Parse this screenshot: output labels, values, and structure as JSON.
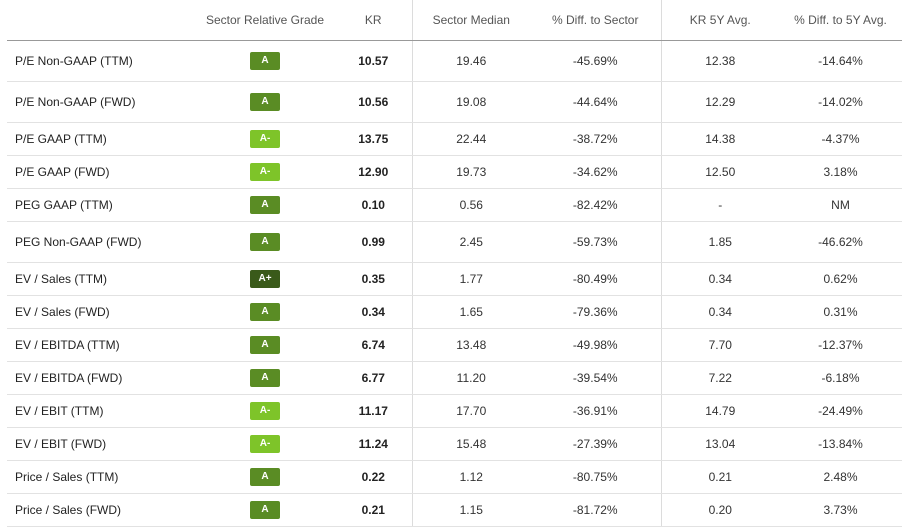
{
  "headers": {
    "metric": "",
    "grade": "Sector Relative Grade",
    "ticker": "KR",
    "sector_median": "Sector Median",
    "diff_sector": "% Diff. to Sector",
    "avg5y": "KR 5Y Avg.",
    "diff_5y": "% Diff. to 5Y Avg."
  },
  "colors": {
    "A+": "#3a5a1a",
    "A": "#5a8c24",
    "A-": "#7ec429"
  },
  "rows": [
    {
      "metric": "P/E Non-GAAP (TTM)",
      "grade": "A",
      "kr": "10.57",
      "median": "19.46",
      "diff_sector": "-45.69%",
      "avg5y": "12.38",
      "diff_5y": "-14.64%"
    },
    {
      "metric": "P/E Non-GAAP (FWD)",
      "grade": "A",
      "kr": "10.56",
      "median": "19.08",
      "diff_sector": "-44.64%",
      "avg5y": "12.29",
      "diff_5y": "-14.02%"
    },
    {
      "metric": "P/E GAAP (TTM)",
      "grade": "A-",
      "kr": "13.75",
      "median": "22.44",
      "diff_sector": "-38.72%",
      "avg5y": "14.38",
      "diff_5y": "-4.37%"
    },
    {
      "metric": "P/E GAAP (FWD)",
      "grade": "A-",
      "kr": "12.90",
      "median": "19.73",
      "diff_sector": "-34.62%",
      "avg5y": "12.50",
      "diff_5y": "3.18%"
    },
    {
      "metric": "PEG GAAP (TTM)",
      "grade": "A",
      "kr": "0.10",
      "median": "0.56",
      "diff_sector": "-82.42%",
      "avg5y": "-",
      "diff_5y": "NM"
    },
    {
      "metric": "PEG Non-GAAP (FWD)",
      "grade": "A",
      "kr": "0.99",
      "median": "2.45",
      "diff_sector": "-59.73%",
      "avg5y": "1.85",
      "diff_5y": "-46.62%"
    },
    {
      "metric": "EV / Sales (TTM)",
      "grade": "A+",
      "kr": "0.35",
      "median": "1.77",
      "diff_sector": "-80.49%",
      "avg5y": "0.34",
      "diff_5y": "0.62%"
    },
    {
      "metric": "EV / Sales (FWD)",
      "grade": "A",
      "kr": "0.34",
      "median": "1.65",
      "diff_sector": "-79.36%",
      "avg5y": "0.34",
      "diff_5y": "0.31%"
    },
    {
      "metric": "EV / EBITDA (TTM)",
      "grade": "A",
      "kr": "6.74",
      "median": "13.48",
      "diff_sector": "-49.98%",
      "avg5y": "7.70",
      "diff_5y": "-12.37%"
    },
    {
      "metric": "EV / EBITDA (FWD)",
      "grade": "A",
      "kr": "6.77",
      "median": "11.20",
      "diff_sector": "-39.54%",
      "avg5y": "7.22",
      "diff_5y": "-6.18%"
    },
    {
      "metric": "EV / EBIT (TTM)",
      "grade": "A-",
      "kr": "11.17",
      "median": "17.70",
      "diff_sector": "-36.91%",
      "avg5y": "14.79",
      "diff_5y": "-24.49%"
    },
    {
      "metric": "EV / EBIT (FWD)",
      "grade": "A-",
      "kr": "11.24",
      "median": "15.48",
      "diff_sector": "-27.39%",
      "avg5y": "13.04",
      "diff_5y": "-13.84%"
    },
    {
      "metric": "Price / Sales (TTM)",
      "grade": "A",
      "kr": "0.22",
      "median": "1.12",
      "diff_sector": "-80.75%",
      "avg5y": "0.21",
      "diff_5y": "2.48%"
    },
    {
      "metric": "Price / Sales (FWD)",
      "grade": "A",
      "kr": "0.21",
      "median": "1.15",
      "diff_sector": "-81.72%",
      "avg5y": "0.20",
      "diff_5y": "3.73%"
    }
  ]
}
